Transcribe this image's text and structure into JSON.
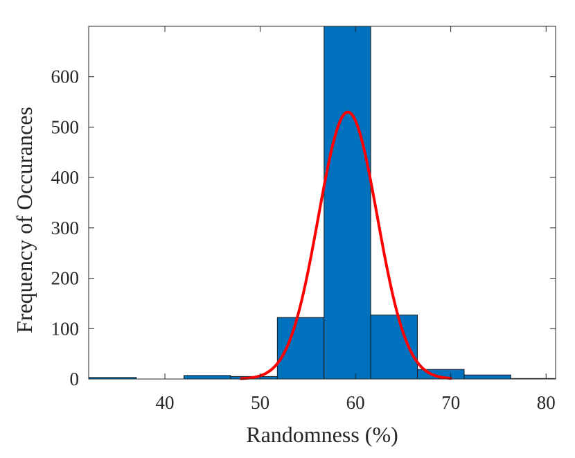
{
  "chart_data": {
    "type": "bar",
    "xlabel": "Randomness (%)",
    "ylabel": "Frequency of Occurances",
    "xlim": [
      32,
      81
    ],
    "ylim": [
      0,
      700
    ],
    "grid": false,
    "legend": "none",
    "xticks": [
      "40",
      "50",
      "60",
      "70",
      "80"
    ],
    "xtick_values": [
      40,
      50,
      60,
      70,
      80
    ],
    "yticks": [
      "0",
      "100",
      "200",
      "300",
      "400",
      "500",
      "600"
    ],
    "ytick_values": [
      0,
      100,
      200,
      300,
      400,
      500,
      600
    ],
    "bins": [
      {
        "start": 32.0,
        "end": 37.0,
        "value": 3
      },
      {
        "start": 37.0,
        "end": 42.0,
        "value": 0
      },
      {
        "start": 42.0,
        "end": 46.9,
        "value": 7
      },
      {
        "start": 46.9,
        "end": 51.8,
        "value": 5
      },
      {
        "start": 51.8,
        "end": 56.7,
        "value": 122
      },
      {
        "start": 56.7,
        "end": 61.6,
        "value": 700
      },
      {
        "start": 61.6,
        "end": 66.5,
        "value": 127
      },
      {
        "start": 66.5,
        "end": 71.4,
        "value": 19
      },
      {
        "start": 71.4,
        "end": 76.3,
        "value": 8
      },
      {
        "start": 76.3,
        "end": 81.0,
        "value": 1
      }
    ],
    "fit": {
      "type": "normal",
      "mean": 59.2,
      "std": 3.1,
      "peak": 530,
      "x_range": [
        48,
        70
      ],
      "color": "#ff0000"
    },
    "bar_color": "#0072bd"
  }
}
